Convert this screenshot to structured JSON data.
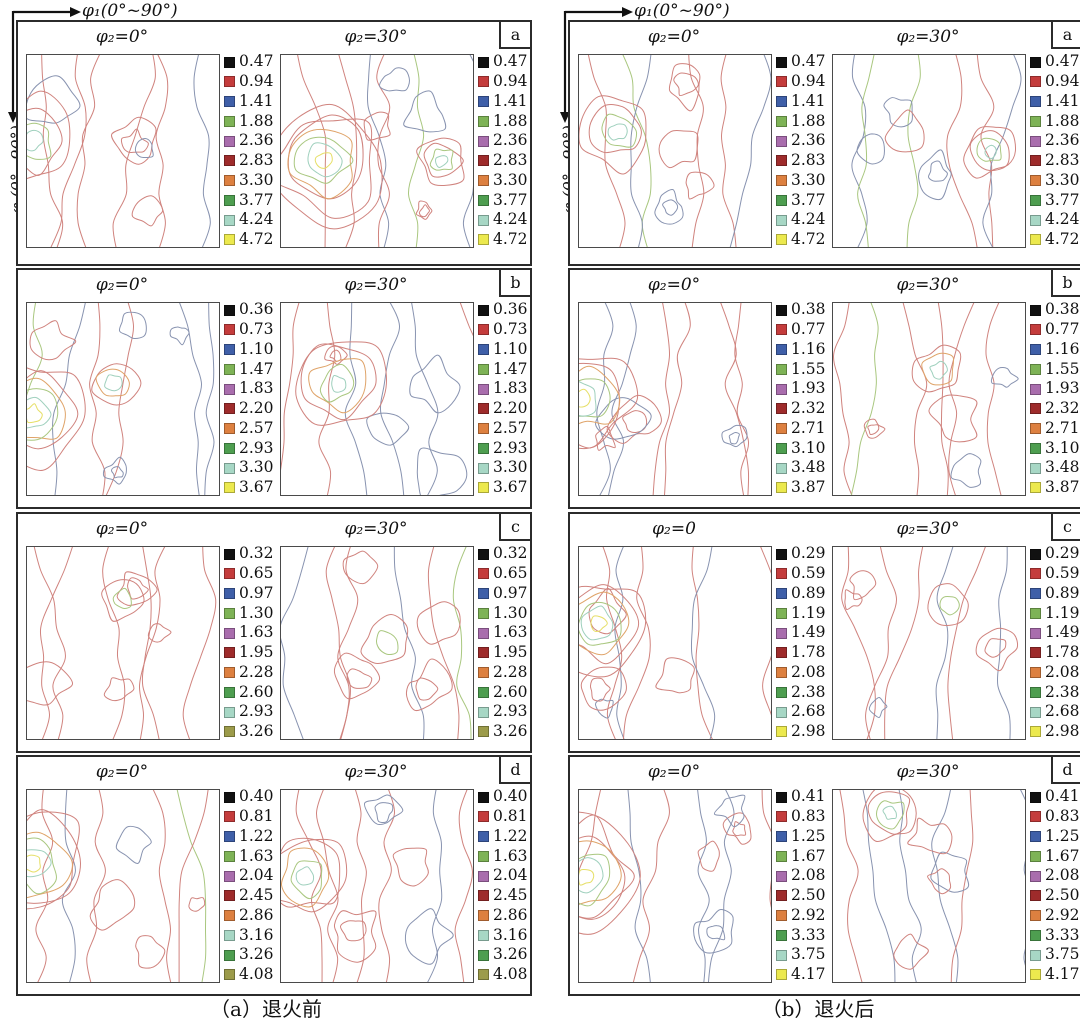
{
  "chart_data": {
    "type": "contour",
    "subtype": "ODF-orientation-distribution-sections",
    "axes": {
      "x": "φ₁(0°~90°)",
      "y": "φ (0°~90°)",
      "x_range_deg": [
        0,
        90
      ],
      "y_range_deg": [
        0,
        90
      ]
    },
    "line_palette": {
      "red": "#d0837e",
      "blue": "#8893b0",
      "orange": "#dfa368",
      "green": "#a9c77f",
      "teal": "#9fd0bd",
      "yellow": "#e6df67"
    },
    "groups": [
      {
        "caption": "（a）退火前",
        "panels": [
          {
            "corner_label": "a",
            "levels": [
              "0.47",
              "0.94",
              "1.41",
              "1.88",
              "2.36",
              "2.83",
              "3.30",
              "3.77",
              "4.24",
              "4.72"
            ],
            "colors": [
              "#111111",
              "#c43c3c",
              "#3f5fa8",
              "#7eb356",
              "#a96dad",
              "#9e2b2b",
              "#dd8040",
              "#4e9e50",
              "#a7d7c5",
              "#ece94e"
            ],
            "sections": [
              {
                "title": "φ₂=0°",
                "seed": 101,
                "hotspots": [
                  {
                    "x": 0.03,
                    "y": 0.45,
                    "r": 0.2,
                    "rings": 4
                  }
                ]
              },
              {
                "title": "φ₂=30°",
                "seed": 102,
                "hotspots": [
                  {
                    "x": 0.22,
                    "y": 0.55,
                    "r": 0.3,
                    "rings": 7
                  },
                  {
                    "x": 0.84,
                    "y": 0.55,
                    "r": 0.12,
                    "rings": 4
                  }
                ]
              }
            ]
          },
          {
            "corner_label": "b",
            "levels": [
              "0.36",
              "0.73",
              "1.10",
              "1.47",
              "1.83",
              "2.20",
              "2.57",
              "2.93",
              "3.30",
              "3.67"
            ],
            "colors": [
              "#111111",
              "#c43c3c",
              "#3f5fa8",
              "#7eb356",
              "#a96dad",
              "#9e2b2b",
              "#dd8040",
              "#4e9e50",
              "#a7d7c5",
              "#ece94e"
            ],
            "sections": [
              {
                "title": "φ₂=0°",
                "seed": 201,
                "hotspots": [
                  {
                    "x": 0.03,
                    "y": 0.58,
                    "r": 0.26,
                    "rings": 6
                  },
                  {
                    "x": 0.45,
                    "y": 0.42,
                    "r": 0.12,
                    "rings": 3
                  }
                ]
              },
              {
                "title": "φ₂=30°",
                "seed": 202,
                "hotspots": [
                  {
                    "x": 0.3,
                    "y": 0.42,
                    "r": 0.22,
                    "rings": 5
                  }
                ]
              }
            ]
          },
          {
            "corner_label": "c",
            "levels": [
              "0.32",
              "0.65",
              "0.97",
              "1.30",
              "1.63",
              "1.95",
              "2.28",
              "2.60",
              "2.93",
              "3.26"
            ],
            "colors": [
              "#111111",
              "#c43c3c",
              "#3f5fa8",
              "#7eb356",
              "#a96dad",
              "#9e2b2b",
              "#dd8040",
              "#4e9e50",
              "#a7d7c5",
              "#9c9b4a"
            ],
            "sections": [
              {
                "title": "φ₂=0°",
                "seed": 301,
                "hotspots": [
                  {
                    "x": 0.5,
                    "y": 0.28,
                    "r": 0.1,
                    "rings": 2
                  }
                ]
              },
              {
                "title": "φ₂=30°",
                "seed": 302,
                "hotspots": [
                  {
                    "x": 0.55,
                    "y": 0.5,
                    "r": 0.12,
                    "rings": 2
                  }
                ]
              }
            ]
          },
          {
            "corner_label": "d",
            "levels": [
              "0.40",
              "0.81",
              "1.22",
              "1.63",
              "2.04",
              "2.45",
              "2.86",
              "3.16",
              "3.26",
              "4.08"
            ],
            "colors": [
              "#111111",
              "#c43c3c",
              "#3f5fa8",
              "#7eb356",
              "#a96dad",
              "#9e2b2b",
              "#dd8040",
              "#a7d7c5",
              "#4e9e50",
              "#9c9b4a"
            ],
            "sections": [
              {
                "title": "φ₂=0°",
                "seed": 401,
                "hotspots": [
                  {
                    "x": 0.03,
                    "y": 0.38,
                    "r": 0.26,
                    "rings": 6
                  }
                ]
              },
              {
                "title": "φ₂=30°",
                "seed": 402,
                "hotspots": [
                  {
                    "x": 0.13,
                    "y": 0.45,
                    "r": 0.22,
                    "rings": 5
                  }
                ]
              }
            ]
          }
        ]
      },
      {
        "caption": "（b）退火后",
        "panels": [
          {
            "corner_label": "a",
            "levels": [
              "0.47",
              "0.94",
              "1.41",
              "1.88",
              "2.36",
              "2.83",
              "3.30",
              "3.77",
              "4.24",
              "4.72"
            ],
            "colors": [
              "#111111",
              "#c43c3c",
              "#3f5fa8",
              "#7eb356",
              "#a96dad",
              "#9e2b2b",
              "#dd8040",
              "#4e9e50",
              "#a7d7c5",
              "#ece94e"
            ],
            "sections": [
              {
                "title": "φ₂=0°",
                "seed": 501,
                "hotspots": [
                  {
                    "x": 0.2,
                    "y": 0.4,
                    "r": 0.18,
                    "rings": 4
                  }
                ]
              },
              {
                "title": "φ₂=30°",
                "seed": 502,
                "hotspots": [
                  {
                    "x": 0.82,
                    "y": 0.5,
                    "r": 0.13,
                    "rings": 4
                  }
                ]
              }
            ]
          },
          {
            "corner_label": "b",
            "levels": [
              "0.38",
              "0.77",
              "1.16",
              "1.55",
              "1.93",
              "2.32",
              "2.71",
              "3.10",
              "3.48",
              "3.87"
            ],
            "colors": [
              "#111111",
              "#c43c3c",
              "#3f5fa8",
              "#7eb356",
              "#a96dad",
              "#9e2b2b",
              "#dd8040",
              "#4e9e50",
              "#a7d7c5",
              "#ece94e"
            ],
            "sections": [
              {
                "title": "φ₂=0°",
                "seed": 601,
                "hotspots": [
                  {
                    "x": 0.02,
                    "y": 0.5,
                    "r": 0.24,
                    "rings": 6
                  }
                ]
              },
              {
                "title": "φ₂=30°",
                "seed": 602,
                "hotspots": [
                  {
                    "x": 0.55,
                    "y": 0.35,
                    "r": 0.12,
                    "rings": 3
                  }
                ]
              }
            ]
          },
          {
            "corner_label": "c",
            "levels": [
              "0.29",
              "0.59",
              "0.89",
              "1.19",
              "1.49",
              "1.78",
              "2.08",
              "2.38",
              "2.68",
              "2.98"
            ],
            "colors": [
              "#111111",
              "#c43c3c",
              "#3f5fa8",
              "#7eb356",
              "#a96dad",
              "#9e2b2b",
              "#dd8040",
              "#4e9e50",
              "#a7d7c5",
              "#ece94e"
            ],
            "sections": [
              {
                "title": "φ₂=0",
                "seed": 701,
                "hotspots": [
                  {
                    "x": 0.1,
                    "y": 0.4,
                    "r": 0.24,
                    "rings": 6
                  }
                ]
              },
              {
                "title": "φ₂=30°",
                "seed": 702,
                "hotspots": [
                  {
                    "x": 0.6,
                    "y": 0.3,
                    "r": 0.1,
                    "rings": 2
                  }
                ]
              }
            ]
          },
          {
            "corner_label": "d",
            "levels": [
              "0.41",
              "0.83",
              "1.25",
              "1.67",
              "2.08",
              "2.50",
              "2.92",
              "3.33",
              "3.75",
              "4.17"
            ],
            "colors": [
              "#111111",
              "#c43c3c",
              "#3f5fa8",
              "#7eb356",
              "#a96dad",
              "#9e2b2b",
              "#dd8040",
              "#4e9e50",
              "#a7d7c5",
              "#ece94e"
            ],
            "sections": [
              {
                "title": "φ₂=0°",
                "seed": 801,
                "hotspots": [
                  {
                    "x": 0.03,
                    "y": 0.45,
                    "r": 0.28,
                    "rings": 7
                  }
                ]
              },
              {
                "title": "φ₂=30°",
                "seed": 802,
                "hotspots": [
                  {
                    "x": 0.3,
                    "y": 0.12,
                    "r": 0.14,
                    "rings": 4
                  }
                ]
              }
            ]
          }
        ]
      }
    ]
  }
}
